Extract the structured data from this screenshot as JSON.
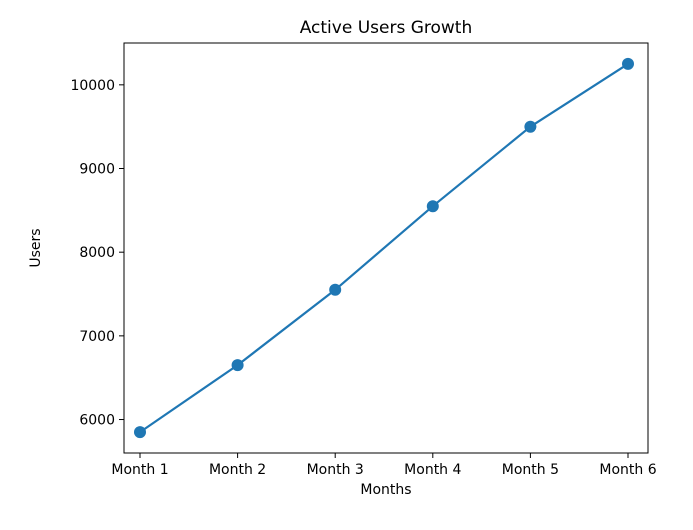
{
  "figure": {
    "background": "#ffffff",
    "text_color": "#000000",
    "axis_color": "#000000"
  },
  "chart_data": {
    "type": "line",
    "title": "Active Users Growth",
    "xlabel": "Months",
    "ylabel": "Users",
    "categories": [
      "Month 1",
      "Month 2",
      "Month 3",
      "Month 4",
      "Month 5",
      "Month 6"
    ],
    "series": [
      {
        "name": "Active Users",
        "values": [
          5850,
          6650,
          7550,
          8550,
          9500,
          10250
        ],
        "color": "#1f77b4",
        "marker": "o"
      }
    ],
    "yticks": [
      6000,
      7000,
      8000,
      9000,
      10000
    ],
    "ylim": [
      5600,
      10500
    ],
    "grid": false,
    "legend": false
  }
}
